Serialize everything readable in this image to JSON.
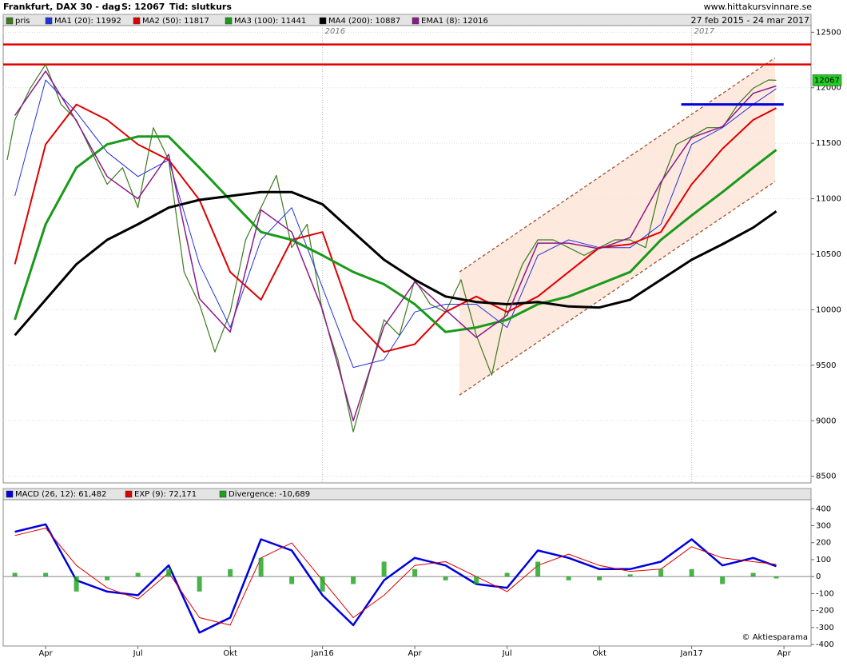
{
  "chart_data": [
    {
      "type": "line",
      "title": "Frankfurt, DAX 30 - dag",
      "close_text": "S: 12067",
      "mode_text": "Tid: slutkurs",
      "source": "www.hittakursvinnare.se",
      "date_range": "27 feb 2015 - 24 mar 2017",
      "xlim": [
        1.62,
        27.88
      ],
      "ylim": [
        8440,
        12560
      ],
      "yticks": [
        8500,
        9000,
        9500,
        10000,
        10500,
        11000,
        11500,
        12000,
        12500
      ],
      "grid": true,
      "year_marks": [
        {
          "value": 12,
          "label": "2016"
        },
        {
          "value": 24,
          "label": "2017"
        }
      ],
      "last_price": 12067,
      "last_price_color": "#22cc22",
      "hlines": [
        {
          "value": 12390,
          "color": "#e00000"
        },
        {
          "value": 12210,
          "color": "#e00000"
        }
      ],
      "segments": [
        {
          "x": [
            23.66,
            26.99
          ],
          "y": [
            11850,
            11850
          ],
          "color": "#0000dd"
        }
      ],
      "channel": {
        "x": [
          16.45,
          26.71
        ],
        "upper": [
          10340,
          12270
        ],
        "lower": [
          9230,
          11155
        ],
        "color": "#a0522d",
        "fill": "#fde3d6"
      },
      "series": [
        {
          "name": "pris",
          "color": "#3c7a1e",
          "width": 1.2,
          "x": [
            1.75,
            2,
            2.5,
            3,
            3.5,
            4,
            4.5,
            5,
            5.5,
            6,
            6.5,
            7,
            7.5,
            8,
            8.5,
            9,
            9.5,
            10,
            10.5,
            11,
            11.5,
            12,
            12.5,
            13,
            13.5,
            14,
            14.5,
            15,
            15.5,
            16,
            16.5,
            17,
            17.5,
            18,
            18.5,
            19,
            19.5,
            20,
            20.5,
            21,
            21.5,
            22,
            22.5,
            23,
            23.5,
            24,
            24.5,
            25,
            25.5,
            26,
            26.5,
            26.75
          ],
          "values": [
            11350,
            11710,
            11995,
            12210,
            11850,
            11710,
            11420,
            11130,
            11280,
            10920,
            11640,
            11350,
            10340,
            10050,
            9620,
            9980,
            10630,
            10920,
            11210,
            10560,
            10770,
            9980,
            9550,
            8900,
            9410,
            9910,
            9770,
            10270,
            10050,
            9980,
            10270,
            9770,
            9410,
            10050,
            10410,
            10630,
            10630,
            10560,
            10490,
            10560,
            10630,
            10630,
            10560,
            11130,
            11490,
            11560,
            11640,
            11640,
            11850,
            11995,
            12070,
            12067
          ]
        },
        {
          "name": "MA1 (20): 11992",
          "color": "#2233dd",
          "width": 1,
          "x": [
            2,
            3,
            4,
            5,
            6,
            7,
            8,
            9,
            10,
            11,
            12,
            13,
            14,
            15,
            16,
            17,
            18,
            19,
            20,
            21,
            22,
            23,
            24,
            25,
            26,
            26.75
          ],
          "values": [
            11025,
            12070,
            11780,
            11420,
            11200,
            11350,
            10410,
            9840,
            10630,
            10920,
            10200,
            9480,
            9550,
            9980,
            10050,
            10050,
            9840,
            10490,
            10630,
            10560,
            10560,
            10770,
            11490,
            11640,
            11850,
            11992
          ]
        },
        {
          "name": "MA2 (50): 11817",
          "color": "#e00000",
          "width": 2,
          "x": [
            2,
            3,
            4,
            5,
            6,
            7,
            8,
            9,
            10,
            11,
            12,
            13,
            14,
            15,
            16,
            17,
            18,
            19,
            20,
            21,
            22,
            23,
            24,
            25,
            26,
            26.75
          ],
          "values": [
            10410,
            11490,
            11850,
            11710,
            11490,
            11350,
            10990,
            10340,
            10090,
            10630,
            10700,
            9910,
            9620,
            9690,
            9980,
            10120,
            9980,
            10120,
            10340,
            10560,
            10590,
            10700,
            11130,
            11450,
            11710,
            11817
          ]
        },
        {
          "name": "MA3 (100): 11441",
          "color": "#1a9a1a",
          "width": 3,
          "x": [
            2,
            3,
            4,
            5,
            6,
            7,
            8,
            9,
            10,
            11,
            12,
            13,
            14,
            15,
            16,
            17,
            18,
            19,
            20,
            21,
            22,
            23,
            24,
            25,
            26,
            26.75
          ],
          "values": [
            9910,
            10770,
            11280,
            11490,
            11560,
            11560,
            11280,
            10990,
            10700,
            10630,
            10490,
            10340,
            10230,
            10050,
            9800,
            9840,
            9910,
            10050,
            10120,
            10230,
            10340,
            10630,
            10850,
            11060,
            11280,
            11441
          ]
        },
        {
          "name": "MA4 (200): 10887",
          "color": "#000000",
          "width": 3,
          "x": [
            2,
            3,
            4,
            5,
            6,
            7,
            8,
            9,
            10,
            11,
            12,
            13,
            14,
            15,
            16,
            17,
            18,
            19,
            20,
            21,
            22,
            23,
            24,
            25,
            26,
            26.75
          ],
          "values": [
            9770,
            10090,
            10410,
            10630,
            10770,
            10920,
            10990,
            11025,
            11060,
            11060,
            10950,
            10700,
            10450,
            10270,
            10120,
            10070,
            10050,
            10070,
            10030,
            10020,
            10090,
            10270,
            10450,
            10590,
            10740,
            10887
          ]
        },
        {
          "name": "EMA1 (8): 12016",
          "color": "#8b1a8b",
          "width": 1.5,
          "x": [
            2,
            3,
            4,
            5,
            6,
            7,
            8,
            9,
            10,
            11,
            12,
            13,
            14,
            15,
            16,
            17,
            18,
            19,
            20,
            21,
            22,
            23,
            24,
            25,
            26,
            26.75
          ],
          "values": [
            11750,
            12150,
            11700,
            11200,
            11000,
            11400,
            10100,
            9800,
            10900,
            10700,
            10000,
            9000,
            9850,
            10250,
            10000,
            9750,
            9950,
            10600,
            10600,
            10550,
            10650,
            11150,
            11550,
            11650,
            11950,
            12016
          ]
        }
      ]
    },
    {
      "type": "line",
      "credit": "© Aktiesparama",
      "xlim": [
        1.62,
        27.88
      ],
      "ylim": [
        -409,
        453
      ],
      "yticks": [
        -400,
        -300,
        -200,
        -100,
        0,
        100,
        200,
        300,
        400
      ],
      "xticks": [
        {
          "value": 3,
          "label": "Apr"
        },
        {
          "value": 6,
          "label": "Jul"
        },
        {
          "value": 9,
          "label": "Okt"
        },
        {
          "value": 12,
          "label": "Jan16"
        },
        {
          "value": 15,
          "label": "Apr"
        },
        {
          "value": 18,
          "label": "Jul"
        },
        {
          "value": 21,
          "label": "Okt"
        },
        {
          "value": 24,
          "label": "Jan17"
        },
        {
          "value": 27,
          "label": "Apr"
        }
      ],
      "series": [
        {
          "name": "MACD (26, 12): 61,482",
          "color": "#0000dd",
          "width": 2.5,
          "x": [
            2,
            3,
            4,
            5,
            6,
            7,
            8,
            9,
            10,
            11,
            12,
            13,
            14,
            15,
            16,
            17,
            18,
            19,
            20,
            21,
            22,
            23,
            24,
            25,
            26,
            26.75
          ],
          "values": [
            264,
            308,
            -22,
            -88,
            -110,
            66,
            -330,
            -242,
            220,
            154,
            -110,
            -286,
            -22,
            110,
            66,
            -44,
            -66,
            154,
            110,
            44,
            44,
            88,
            220,
            66,
            110,
            61
          ]
        },
        {
          "name": "EXP (9): 72,171",
          "color": "#dd0000",
          "width": 1,
          "x": [
            2,
            3,
            4,
            5,
            6,
            7,
            8,
            9,
            10,
            11,
            12,
            13,
            14,
            15,
            16,
            17,
            18,
            19,
            20,
            21,
            22,
            23,
            24,
            25,
            26,
            26.75
          ],
          "values": [
            242,
            286,
            66,
            -66,
            -132,
            22,
            -242,
            -286,
            110,
            198,
            -22,
            -242,
            -110,
            66,
            88,
            0,
            -88,
            66,
            132,
            66,
            31,
            44,
            176,
            110,
            88,
            72
          ]
        },
        {
          "name": "Divergence: -10,689",
          "color": "#1aa01a",
          "kind": "bar",
          "x": [
            2,
            3,
            4,
            5,
            6,
            7,
            8,
            9,
            10,
            11,
            12,
            13,
            14,
            15,
            16,
            17,
            18,
            19,
            20,
            21,
            22,
            23,
            24,
            25,
            26,
            26.75
          ],
          "values": [
            22,
            22,
            -88,
            -22,
            22,
            44,
            -88,
            44,
            110,
            -44,
            -88,
            -44,
            88,
            44,
            -22,
            -44,
            22,
            88,
            -22,
            -22,
            13,
            44,
            44,
            -44,
            22,
            -11
          ]
        }
      ]
    }
  ]
}
